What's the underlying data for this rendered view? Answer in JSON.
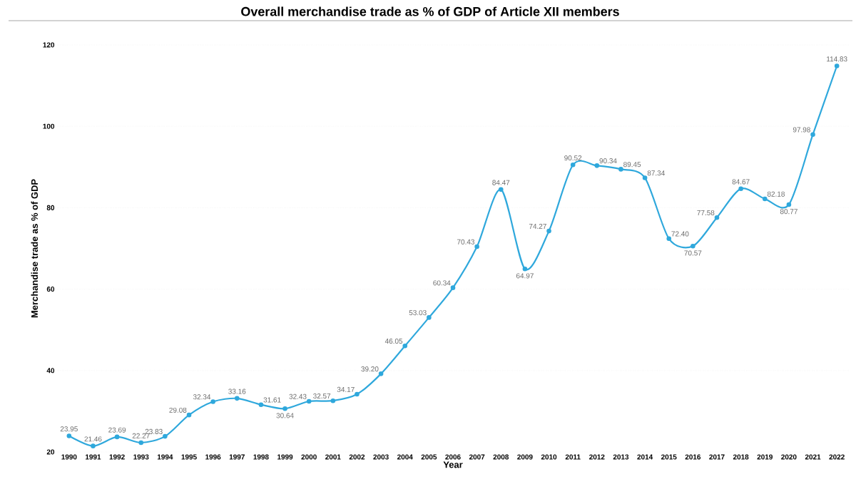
{
  "chart_data": {
    "type": "line",
    "title": "Overall merchandise trade as % of GDP of Article XII members",
    "xlabel": "Year",
    "ylabel": "Merchandise trade as % of GDP",
    "categories": [
      "1990",
      "1991",
      "1992",
      "1993",
      "1994",
      "1995",
      "1996",
      "1997",
      "1998",
      "1999",
      "2000",
      "2001",
      "2002",
      "2003",
      "2004",
      "2005",
      "2006",
      "2007",
      "2008",
      "2009",
      "2010",
      "2011",
      "2012",
      "2013",
      "2014",
      "2015",
      "2016",
      "2017",
      "2018",
      "2019",
      "2020",
      "2021",
      "2022"
    ],
    "values": [
      23.95,
      21.46,
      23.69,
      22.27,
      23.83,
      29.08,
      32.34,
      33.16,
      31.61,
      30.64,
      32.43,
      32.57,
      34.17,
      39.2,
      46.05,
      53.03,
      60.34,
      70.43,
      84.47,
      64.97,
      74.27,
      90.52,
      90.34,
      89.45,
      87.34,
      72.4,
      70.57,
      77.58,
      84.67,
      82.18,
      80.77,
      97.98,
      114.83
    ],
    "value_labels": [
      "23.95",
      "21.46",
      "23.69",
      "22.27",
      "23.83",
      "29.08",
      "32.34",
      "33.16",
      "31.61",
      "30.64",
      "32.43",
      "32.57",
      "34.17",
      "39.20",
      "46.05",
      "53.03",
      "60.34",
      "70.43",
      "84.47",
      "64.97",
      "74.27",
      "90.52",
      "90.34",
      "89.45",
      "87.34",
      "72.40",
      "70.57",
      "77.58",
      "84.67",
      "82.18",
      "80.77",
      "97.98",
      "114.83"
    ],
    "color": "#2fa8dc",
    "ylim": [
      20,
      120
    ],
    "yticks": [
      20,
      40,
      60,
      80,
      100,
      120
    ],
    "grid": "y",
    "marker": "circle",
    "line_style": "solid"
  }
}
